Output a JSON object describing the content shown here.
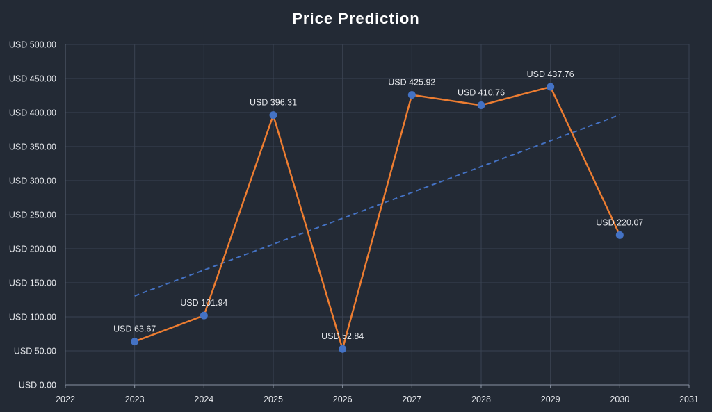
{
  "chart_data": {
    "type": "line",
    "title": "Price Prediction",
    "x": [
      2023,
      2024,
      2025,
      2026,
      2027,
      2028,
      2029,
      2030
    ],
    "series": [
      {
        "values": [
          63.67,
          101.94,
          396.31,
          52.84,
          425.92,
          410.76,
          437.76,
          220.07
        ],
        "labels": [
          "USD 63.67",
          "USD 101.94",
          "USD 396.31",
          "USD 52.84",
          "USD 425.92",
          "USD 410.76",
          "USD 437.76",
          "USD 220.07"
        ]
      }
    ],
    "trendline": {
      "style": "dashed",
      "linear": true
    },
    "xlim": [
      2022,
      2031
    ],
    "ylim": [
      0,
      500
    ],
    "xticks": [
      2022,
      2023,
      2024,
      2025,
      2026,
      2027,
      2028,
      2029,
      2030,
      2031
    ],
    "xtick_labels": [
      "2022",
      "2023",
      "2024",
      "2025",
      "2026",
      "2027",
      "2028",
      "2029",
      "2030",
      "2031"
    ],
    "yticks": [
      0,
      50,
      100,
      150,
      200,
      250,
      300,
      350,
      400,
      450,
      500
    ],
    "ytick_labels": [
      "USD 0.00",
      "USD 50.00",
      "USD 100.00",
      "USD 150.00",
      "USD 200.00",
      "USD 250.00",
      "USD 300.00",
      "USD 350.00",
      "USD 400.00",
      "USD 450.00",
      "USD 500.00"
    ],
    "grid": true,
    "legend": "none",
    "colors": {
      "background": "#232a35",
      "grid": "#3a4352",
      "line": "#ed7d31",
      "marker": "#4472c4",
      "trend": "#4472c4",
      "text": "#e6e8ec",
      "title": "#ffffff"
    }
  }
}
